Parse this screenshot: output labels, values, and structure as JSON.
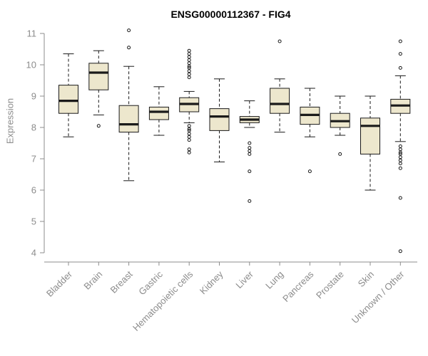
{
  "chart_data": {
    "type": "boxplot",
    "title": "ENSG00000112367 - FIG4",
    "xlabel": "",
    "ylabel": "Expression",
    "ylim": [
      4,
      11
    ],
    "yticks": [
      4,
      5,
      6,
      7,
      8,
      9,
      10,
      11
    ],
    "grid": false,
    "legend": "none",
    "categories": [
      "Bladder",
      "Brain",
      "Breast",
      "Gastric",
      "Hematopoietic cells",
      "Kidney",
      "Liver",
      "Lung",
      "Pancreas",
      "Prostate",
      "Skin",
      "Unknown / Other"
    ],
    "boxes": [
      {
        "category": "Bladder",
        "whisker_low": 7.7,
        "q1": 8.45,
        "median": 8.85,
        "q3": 9.35,
        "whisker_high": 10.35,
        "outliers": []
      },
      {
        "category": "Brain",
        "whisker_low": 8.4,
        "q1": 9.2,
        "median": 9.75,
        "q3": 10.05,
        "whisker_high": 10.45,
        "outliers": [
          8.05
        ]
      },
      {
        "category": "Breast",
        "whisker_low": 6.3,
        "q1": 7.85,
        "median": 8.1,
        "q3": 8.7,
        "whisker_high": 9.95,
        "outliers": [
          11.1,
          10.55
        ]
      },
      {
        "category": "Gastric",
        "whisker_low": 7.75,
        "q1": 8.25,
        "median": 8.5,
        "q3": 8.65,
        "whisker_high": 9.3,
        "outliers": []
      },
      {
        "category": "Hematopoietic cells",
        "whisker_low": 8.15,
        "q1": 8.5,
        "median": 8.75,
        "q3": 8.95,
        "whisker_high": 9.15,
        "outliers": [
          10.45,
          10.35,
          10.25,
          10.15,
          10.05,
          9.95,
          9.9,
          9.8,
          9.7,
          9.6,
          8.05,
          7.95,
          7.9,
          7.8,
          7.7,
          7.6,
          7.3,
          7.2
        ]
      },
      {
        "category": "Kidney",
        "whisker_low": 6.9,
        "q1": 7.9,
        "median": 8.35,
        "q3": 8.6,
        "whisker_high": 9.55,
        "outliers": []
      },
      {
        "category": "Liver",
        "whisker_low": 8.0,
        "q1": 8.15,
        "median": 8.25,
        "q3": 8.35,
        "whisker_high": 8.85,
        "outliers": [
          7.5,
          7.35,
          7.25,
          7.15,
          6.6,
          5.65
        ]
      },
      {
        "category": "Lung",
        "whisker_low": 7.85,
        "q1": 8.45,
        "median": 8.75,
        "q3": 9.25,
        "whisker_high": 9.55,
        "outliers": [
          10.75
        ]
      },
      {
        "category": "Pancreas",
        "whisker_low": 7.7,
        "q1": 8.1,
        "median": 8.4,
        "q3": 8.65,
        "whisker_high": 9.25,
        "outliers": [
          6.6
        ]
      },
      {
        "category": "Prostate",
        "whisker_low": 7.75,
        "q1": 8.0,
        "median": 8.2,
        "q3": 8.45,
        "whisker_high": 9.0,
        "outliers": [
          7.15
        ]
      },
      {
        "category": "Skin",
        "whisker_low": 6.0,
        "q1": 7.15,
        "median": 8.05,
        "q3": 8.3,
        "whisker_high": 9.0,
        "outliers": []
      },
      {
        "category": "Unknown / Other",
        "whisker_low": 7.55,
        "q1": 8.45,
        "median": 8.7,
        "q3": 8.9,
        "whisker_high": 9.65,
        "outliers": [
          10.75,
          10.35,
          9.9,
          7.4,
          7.3,
          7.2,
          7.15,
          7.05,
          6.95,
          6.85,
          6.7,
          5.75,
          4.05
        ]
      }
    ],
    "style": {
      "box_fill": "#ede7cd",
      "box_stroke": "#1a1a1a",
      "axis_color": "#8c8c8c",
      "label_color": "#8c8c8c",
      "title_color": "#000000",
      "background": "#ffffff"
    }
  }
}
